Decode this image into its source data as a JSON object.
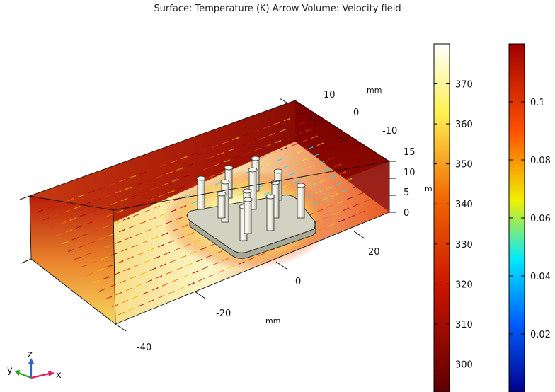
{
  "title": "Surface: Temperature (K)  Arrow Volume: Velocity field",
  "axes": {
    "x": {
      "unit": "mm",
      "ticks": [
        "-40",
        "-20",
        "0",
        "20"
      ]
    },
    "y": {
      "unit": "mm",
      "ticks": [
        "10",
        "0",
        "-10"
      ]
    },
    "z": {
      "unit": "mm",
      "unit_visible": "m",
      "ticks": [
        "15",
        "10",
        "5",
        "0"
      ]
    }
  },
  "triad": {
    "x": "x",
    "y": "y",
    "z": "z"
  },
  "colorbars": [
    {
      "name": "temperature",
      "quantity": "Temperature (K)",
      "colormap": "thermal",
      "ticks": [
        "370",
        "360",
        "350",
        "340",
        "330",
        "320",
        "310",
        "300"
      ],
      "tick_values": [
        370,
        360,
        350,
        340,
        330,
        320,
        310,
        300
      ],
      "range": [
        293,
        380
      ]
    },
    {
      "name": "velocity",
      "quantity": "Velocity field",
      "colormap": "rainbow",
      "ticks": [
        "0.1",
        "0.08",
        "0.06",
        "0.04",
        "0.02"
      ],
      "tick_values": [
        0.1,
        0.08,
        0.06,
        0.04,
        0.02
      ],
      "range": [
        0,
        0.12
      ]
    }
  ],
  "colors": {
    "thermal_dark": "#5c0000",
    "thermal_red": "#c81400",
    "thermal_orange": "#f06400",
    "thermal_yellow": "#fff050",
    "thermal_white": "#ffffff",
    "rainbow_blue": "#00008c",
    "rainbow_cyan": "#00e8ff",
    "rainbow_yellow": "#f0f000",
    "rainbow_red": "#a00000",
    "triad_x": "#e0205a",
    "triad_y": "#2aa02a",
    "triad_z": "#3060c0"
  }
}
